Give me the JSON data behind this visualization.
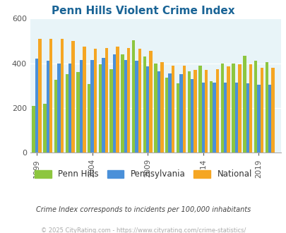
{
  "title": "Penn Hills Violent Crime Index",
  "title_color": "#1a6496",
  "years": [
    1999,
    2000,
    2001,
    2002,
    2003,
    2004,
    2005,
    2006,
    2007,
    2008,
    2009,
    2010,
    2011,
    2012,
    2013,
    2014,
    2015,
    2016,
    2017,
    2018,
    2019,
    2020
  ],
  "penn_hills": [
    208,
    220,
    325,
    352,
    360,
    308,
    396,
    375,
    440,
    502,
    430,
    400,
    335,
    310,
    365,
    388,
    320,
    398,
    400,
    435,
    410,
    405
  ],
  "pennsylvania": [
    420,
    410,
    400,
    400,
    415,
    415,
    425,
    440,
    415,
    410,
    385,
    365,
    355,
    350,
    330,
    312,
    315,
    315,
    312,
    310,
    305,
    305
  ],
  "national": [
    510,
    510,
    510,
    500,
    475,
    465,
    470,
    475,
    470,
    465,
    455,
    405,
    390,
    390,
    370,
    372,
    375,
    385,
    395,
    395,
    380,
    380
  ],
  "bar_colors": {
    "penn_hills": "#8dc63f",
    "pennsylvania": "#4a90d9",
    "national": "#f5a623"
  },
  "ylim": [
    0,
    600
  ],
  "yticks": [
    0,
    200,
    400,
    600
  ],
  "xtick_labels": [
    "1999",
    "2004",
    "2009",
    "2014",
    "2019"
  ],
  "xtick_positions": [
    1999,
    2004,
    2009,
    2014,
    2019
  ],
  "plot_bg_color": "#e8f4f8",
  "fig_bg_color": "#ffffff",
  "subtitle": "Crime Index corresponds to incidents per 100,000 inhabitants",
  "subtitle_color": "#444444",
  "footer": "© 2025 CityRating.com - https://www.cityrating.com/crime-statistics/",
  "footer_color": "#aaaaaa",
  "legend_labels": [
    "Penn Hills",
    "Pennsylvania",
    "National"
  ],
  "bar_width": 0.28
}
